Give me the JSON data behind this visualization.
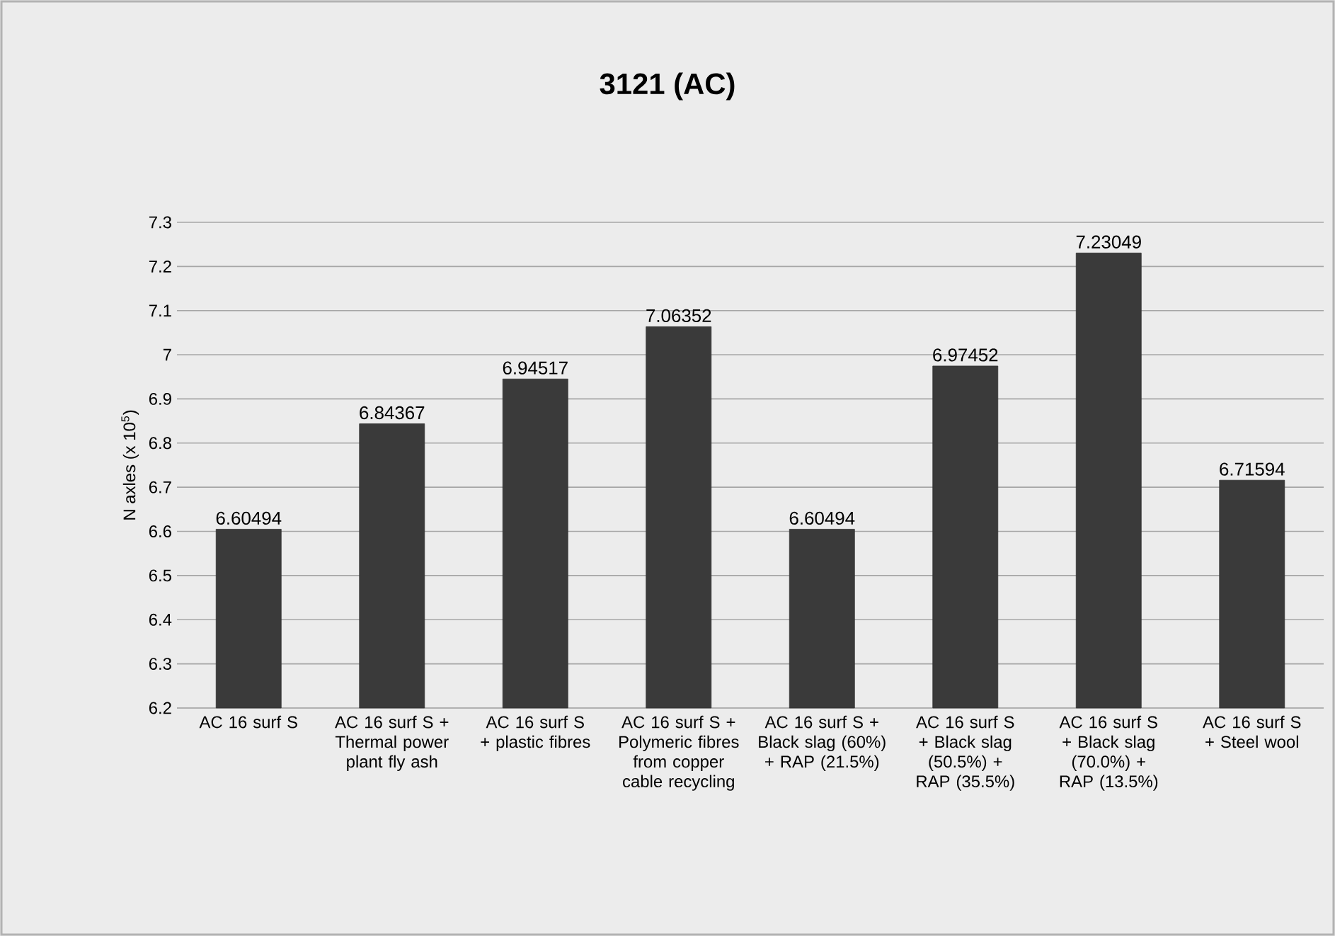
{
  "chart_data": {
    "type": "bar",
    "title": "3121 (AC)",
    "ylabel": "N axles (x 10$^{5}$)",
    "categories": [
      "AC 16 surf S",
      "AC 16 surf S + Thermal power plant fly ash",
      "AC 16 surf S + plastic fibres",
      "AC 16 surf S + Polymeric fibres from copper cable recycling",
      "AC 16 surf S + Black slag (60%) + RAP (21.5%)",
      "AC 16 surf S + Black slag (50.5%) + RAP (35.5%)",
      "AC 16 surf S + Black slag (70.0%) + RAP (13.5%)",
      "AC 16 surf S + Steel wool"
    ],
    "values": [
      6.60494,
      6.84367,
      6.94517,
      7.06352,
      6.60494,
      6.97452,
      7.23049,
      6.71594
    ],
    "value_labels": [
      "6.60494",
      "6.84367",
      "6.94517",
      "7.06352",
      "6.60494",
      "6.97452",
      "7.23049",
      "6.71594"
    ],
    "color": "#3a3a3a",
    "ylim": [
      6.2,
      7.3
    ],
    "yticks": [
      6.2,
      6.3,
      6.4,
      6.5,
      6.6,
      6.7,
      6.8,
      6.9,
      {
        "value": 7,
        "label": "7"
      },
      7.1,
      7.2,
      7.3
    ],
    "grid": "y"
  }
}
